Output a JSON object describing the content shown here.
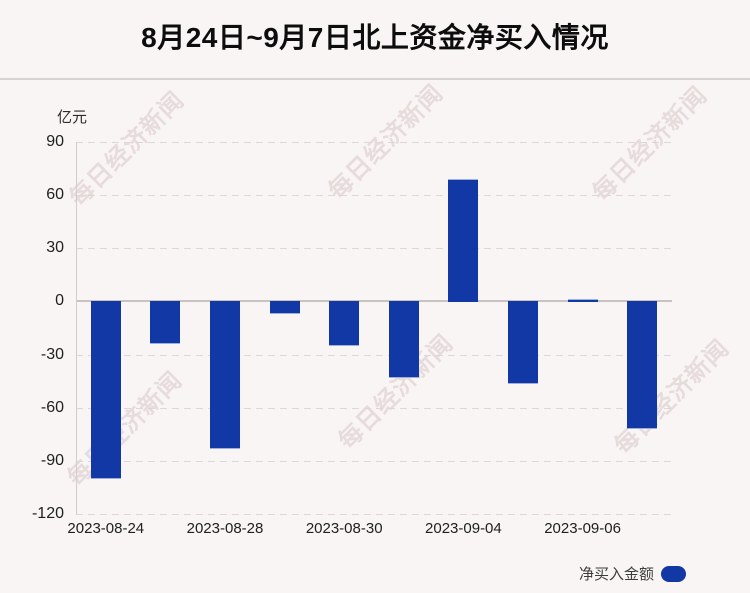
{
  "header": {
    "title": "8月24日~9月7日北上资金净买入情况"
  },
  "watermark": {
    "text": "每日经济新闻"
  },
  "legend": {
    "label": "净买入金额"
  },
  "chart_data": {
    "type": "bar",
    "title": "8月24日~9月7日北上资金净买入情况",
    "unit_label": "亿元",
    "ylabel": "亿元",
    "ylim": [
      -120,
      90
    ],
    "y_ticks": [
      90,
      60,
      30,
      0,
      -30,
      -60,
      -90,
      -120
    ],
    "grid": true,
    "series_name": "净买入金额",
    "values": [
      -99.5,
      -23.2,
      -82.6,
      -6.4,
      -24.5,
      -42.6,
      69,
      -46,
      0.5,
      -71.2
    ],
    "x_tick_labels": [
      {
        "bar_index": 0,
        "label": "2023-08-24"
      },
      {
        "bar_index": 2,
        "label": "2023-08-28"
      },
      {
        "bar_index": 4,
        "label": "2023-08-30"
      },
      {
        "bar_index": 6,
        "label": "2023-09-04"
      },
      {
        "bar_index": 8,
        "label": "2023-09-06"
      }
    ],
    "legend_position": "bottom-right"
  },
  "colors": {
    "background": "#faf5f5",
    "bar": "#1238a6",
    "bar_edge": "#9dafdf",
    "grid_line": "#ded7d7",
    "zero_line": "#c9c2c2",
    "axis_line": "#d2cccc",
    "title_text": "#0d0d0d",
    "tick_text": "#202020"
  }
}
